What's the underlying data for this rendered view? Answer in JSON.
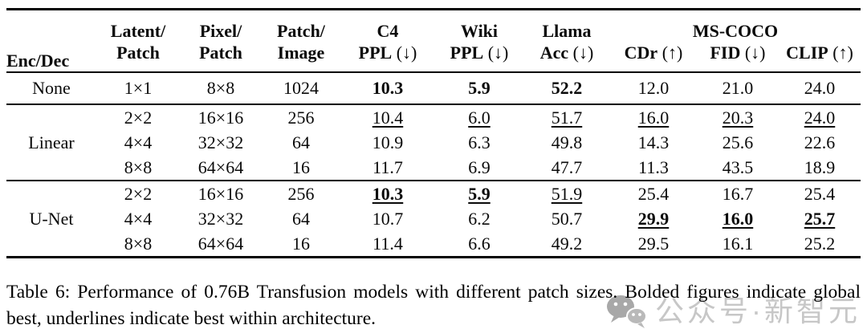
{
  "table": {
    "header": {
      "enc_dec": "Enc/Dec",
      "columns": [
        {
          "top": "Latent/",
          "bottom": "Patch",
          "arrow": ""
        },
        {
          "top": "Pixel/",
          "bottom": "Patch",
          "arrow": ""
        },
        {
          "top": "Patch/",
          "bottom": "Image",
          "arrow": ""
        },
        {
          "top": "C4",
          "bottom": "PPL",
          "arrow": "(↓)"
        },
        {
          "top": "Wiki",
          "bottom": "PPL",
          "arrow": "(↓)"
        },
        {
          "top": "Llama",
          "bottom": "Acc",
          "arrow": "(↓)"
        }
      ],
      "span_group": {
        "label": "MS-COCO",
        "columns": [
          {
            "bottom": "CDr",
            "arrow": "(↑)"
          },
          {
            "bottom": "FID",
            "arrow": "(↓)"
          },
          {
            "bottom": "CLIP",
            "arrow": "(↑)"
          }
        ]
      }
    },
    "groups": [
      {
        "name": "None",
        "rows": [
          [
            {
              "v": "1×1"
            },
            {
              "v": "8×8"
            },
            {
              "v": "1024"
            },
            {
              "v": "10.3",
              "b": true
            },
            {
              "v": "5.9",
              "b": true
            },
            {
              "v": "52.2",
              "b": true
            },
            {
              "v": "12.0"
            },
            {
              "v": "21.0"
            },
            {
              "v": "24.0"
            }
          ]
        ]
      },
      {
        "name": "Linear",
        "rows": [
          [
            {
              "v": "2×2"
            },
            {
              "v": "16×16"
            },
            {
              "v": "256"
            },
            {
              "v": "10.4",
              "u": true
            },
            {
              "v": "6.0",
              "u": true
            },
            {
              "v": "51.7",
              "u": true
            },
            {
              "v": "16.0",
              "u": true
            },
            {
              "v": "20.3",
              "u": true
            },
            {
              "v": "24.0",
              "u": true
            }
          ],
          [
            {
              "v": "4×4"
            },
            {
              "v": "32×32"
            },
            {
              "v": "64"
            },
            {
              "v": "10.9"
            },
            {
              "v": "6.3"
            },
            {
              "v": "49.8"
            },
            {
              "v": "14.3"
            },
            {
              "v": "25.6"
            },
            {
              "v": "22.6"
            }
          ],
          [
            {
              "v": "8×8"
            },
            {
              "v": "64×64"
            },
            {
              "v": "16"
            },
            {
              "v": "11.7"
            },
            {
              "v": "6.9"
            },
            {
              "v": "47.7"
            },
            {
              "v": "11.3"
            },
            {
              "v": "43.5"
            },
            {
              "v": "18.9"
            }
          ]
        ]
      },
      {
        "name": "U-Net",
        "rows": [
          [
            {
              "v": "2×2"
            },
            {
              "v": "16×16"
            },
            {
              "v": "256"
            },
            {
              "v": "10.3",
              "b": true,
              "u": true
            },
            {
              "v": "5.9",
              "b": true,
              "u": true
            },
            {
              "v": "51.9",
              "u": true
            },
            {
              "v": "25.4"
            },
            {
              "v": "16.7"
            },
            {
              "v": "25.4"
            }
          ],
          [
            {
              "v": "4×4"
            },
            {
              "v": "32×32"
            },
            {
              "v": "64"
            },
            {
              "v": "10.7"
            },
            {
              "v": "6.2"
            },
            {
              "v": "50.7"
            },
            {
              "v": "29.9",
              "b": true,
              "u": true
            },
            {
              "v": "16.0",
              "b": true,
              "u": true
            },
            {
              "v": "25.7",
              "b": true,
              "u": true
            }
          ],
          [
            {
              "v": "8×8"
            },
            {
              "v": "64×64"
            },
            {
              "v": "16"
            },
            {
              "v": "11.4"
            },
            {
              "v": "6.6"
            },
            {
              "v": "49.2"
            },
            {
              "v": "29.5"
            },
            {
              "v": "16.1"
            },
            {
              "v": "25.2"
            }
          ]
        ]
      }
    ]
  },
  "caption": "Table 6: Performance of 0.76B Transfusion models with different patch sizes. Bolded figures indicate global best, underlines indicate best within architecture.",
  "watermark": {
    "icon": "wechat-icon",
    "text": "公众号·新智元",
    "text_color": "#c7c7c7",
    "icon_color": "#a8a8a8"
  }
}
